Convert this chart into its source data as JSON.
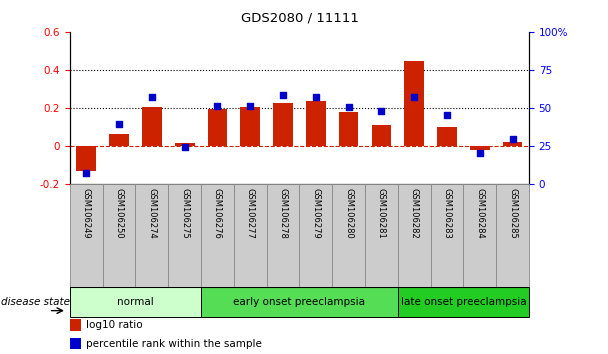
{
  "title": "GDS2080 / 11111",
  "samples": [
    "GSM106249",
    "GSM106250",
    "GSM106274",
    "GSM106275",
    "GSM106276",
    "GSM106277",
    "GSM106278",
    "GSM106279",
    "GSM106280",
    "GSM106281",
    "GSM106282",
    "GSM106283",
    "GSM106284",
    "GSM106285"
  ],
  "log10_ratio": [
    -0.13,
    0.065,
    0.205,
    0.015,
    0.195,
    0.205,
    0.225,
    0.235,
    0.18,
    0.11,
    0.445,
    0.1,
    -0.02,
    0.02
  ],
  "percentile_rank": [
    0.07,
    0.395,
    0.575,
    0.245,
    0.51,
    0.515,
    0.585,
    0.57,
    0.505,
    0.48,
    0.575,
    0.455,
    0.205,
    0.295
  ],
  "groups": [
    {
      "label": "normal",
      "start": 0,
      "end": 4,
      "color": "#ccffcc"
    },
    {
      "label": "early onset preeclampsia",
      "start": 4,
      "end": 10,
      "color": "#55dd55"
    },
    {
      "label": "late onset preeclampsia",
      "start": 10,
      "end": 14,
      "color": "#22cc22"
    }
  ],
  "bar_color": "#cc2200",
  "dot_color": "#0000cc",
  "ylim_left": [
    -0.2,
    0.6
  ],
  "ylim_right": [
    0.0,
    1.0
  ],
  "yticks_left": [
    -0.2,
    0.0,
    0.2,
    0.4,
    0.6
  ],
  "ytick_labels_left": [
    "-0.2",
    "0",
    "0.2",
    "0.4",
    "0.6"
  ],
  "yticks_right": [
    0.0,
    0.25,
    0.5,
    0.75,
    1.0
  ],
  "ytick_labels_right": [
    "0",
    "25",
    "50",
    "75",
    "100%"
  ],
  "hlines": [
    0.2,
    0.4
  ],
  "hline_zero": 0.0,
  "legend_items": [
    {
      "label": "log10 ratio",
      "color": "#cc2200"
    },
    {
      "label": "percentile rank within the sample",
      "color": "#0000cc"
    }
  ],
  "disease_state_label": "disease state",
  "bar_width": 0.6,
  "sample_box_color": "#cccccc",
  "sample_box_edge": "#888888"
}
